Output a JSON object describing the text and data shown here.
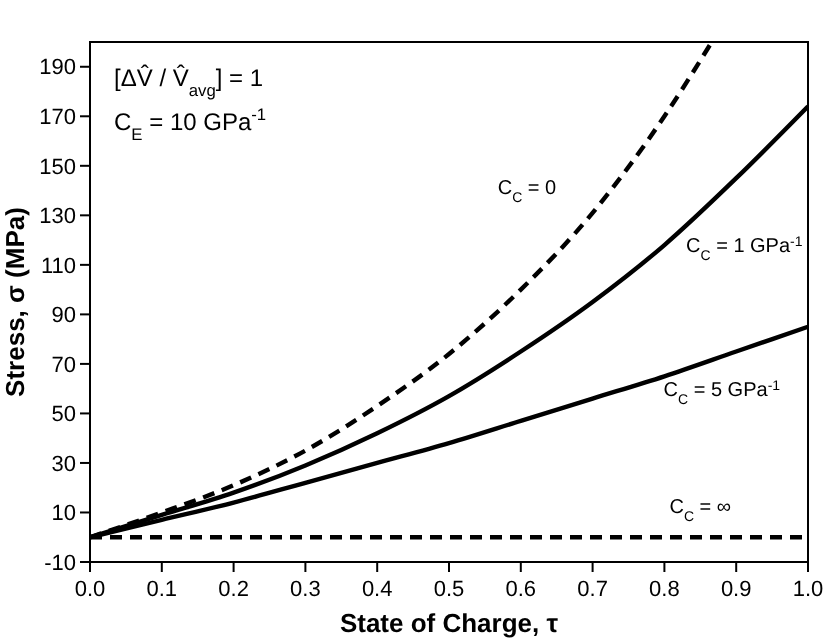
{
  "chart_data": {
    "type": "line",
    "xlabel": "State of Charge, τ",
    "ylabel": "Stress, σ (MPa)",
    "x": [
      0,
      0.1,
      0.2,
      0.3,
      0.4,
      0.5,
      0.6,
      0.7,
      0.8,
      0.866
    ],
    "xlim": [
      0,
      1
    ],
    "xticks": [
      {
        "value": 0,
        "label": "0.0"
      },
      {
        "value": 0.1,
        "label": "0.1"
      },
      {
        "value": 0.2,
        "label": "0.2"
      },
      {
        "value": 0.3,
        "label": "0.3"
      },
      {
        "value": 0.4,
        "label": "0.4"
      },
      {
        "value": 0.5,
        "label": "0.5"
      },
      {
        "value": 0.6,
        "label": "0.6"
      },
      {
        "value": 0.7,
        "label": "0.7"
      },
      {
        "value": 0.8,
        "label": "0.8"
      },
      {
        "value": 0.9,
        "label": "0.9"
      },
      {
        "value": 1,
        "label": "1.0"
      }
    ],
    "ylim": [
      -10,
      200
    ],
    "yticks": [
      -10,
      10,
      30,
      50,
      70,
      90,
      110,
      130,
      150,
      170,
      190
    ],
    "grid": false,
    "marker": "none",
    "series": [
      {
        "name": "C$_{C}$ = 0",
        "color": "#000000",
        "line_style": "dashed",
        "values": [
          0,
          10,
          21,
          35,
          53,
          74,
          100,
          131,
          170,
          200
        ]
      },
      {
        "name": "C$_{C}$ = 1 GPa$^{-1}$",
        "color": "#000000",
        "line_style": "solid",
        "x": [
          0,
          0.1,
          0.2,
          0.3,
          0.4,
          0.5,
          0.6,
          0.7,
          0.8,
          0.9,
          1
        ],
        "values": [
          0,
          9,
          18,
          29,
          42,
          57,
          75,
          95,
          118,
          145,
          174
        ]
      },
      {
        "name": "C$_{C}$ = 5 GPa$^{-1}$",
        "color": "#000000",
        "line_style": "solid",
        "x": [
          0,
          0.1,
          0.2,
          0.3,
          0.4,
          0.5,
          0.6,
          0.7,
          0.8,
          0.9,
          1
        ],
        "values": [
          0,
          7,
          14,
          22,
          30,
          38,
          47,
          56,
          65,
          75,
          85
        ]
      },
      {
        "name": "C$_{C}$ = ∞",
        "color": "#000000",
        "line_style": "dashed",
        "x": [
          0,
          1
        ],
        "values": [
          0,
          0
        ]
      }
    ],
    "annotations": [
      "[ΔV̂ / V̂$_{avg}$] = 1",
      "C$_{E}$ = 10 GPa$^{-1}$"
    ]
  }
}
